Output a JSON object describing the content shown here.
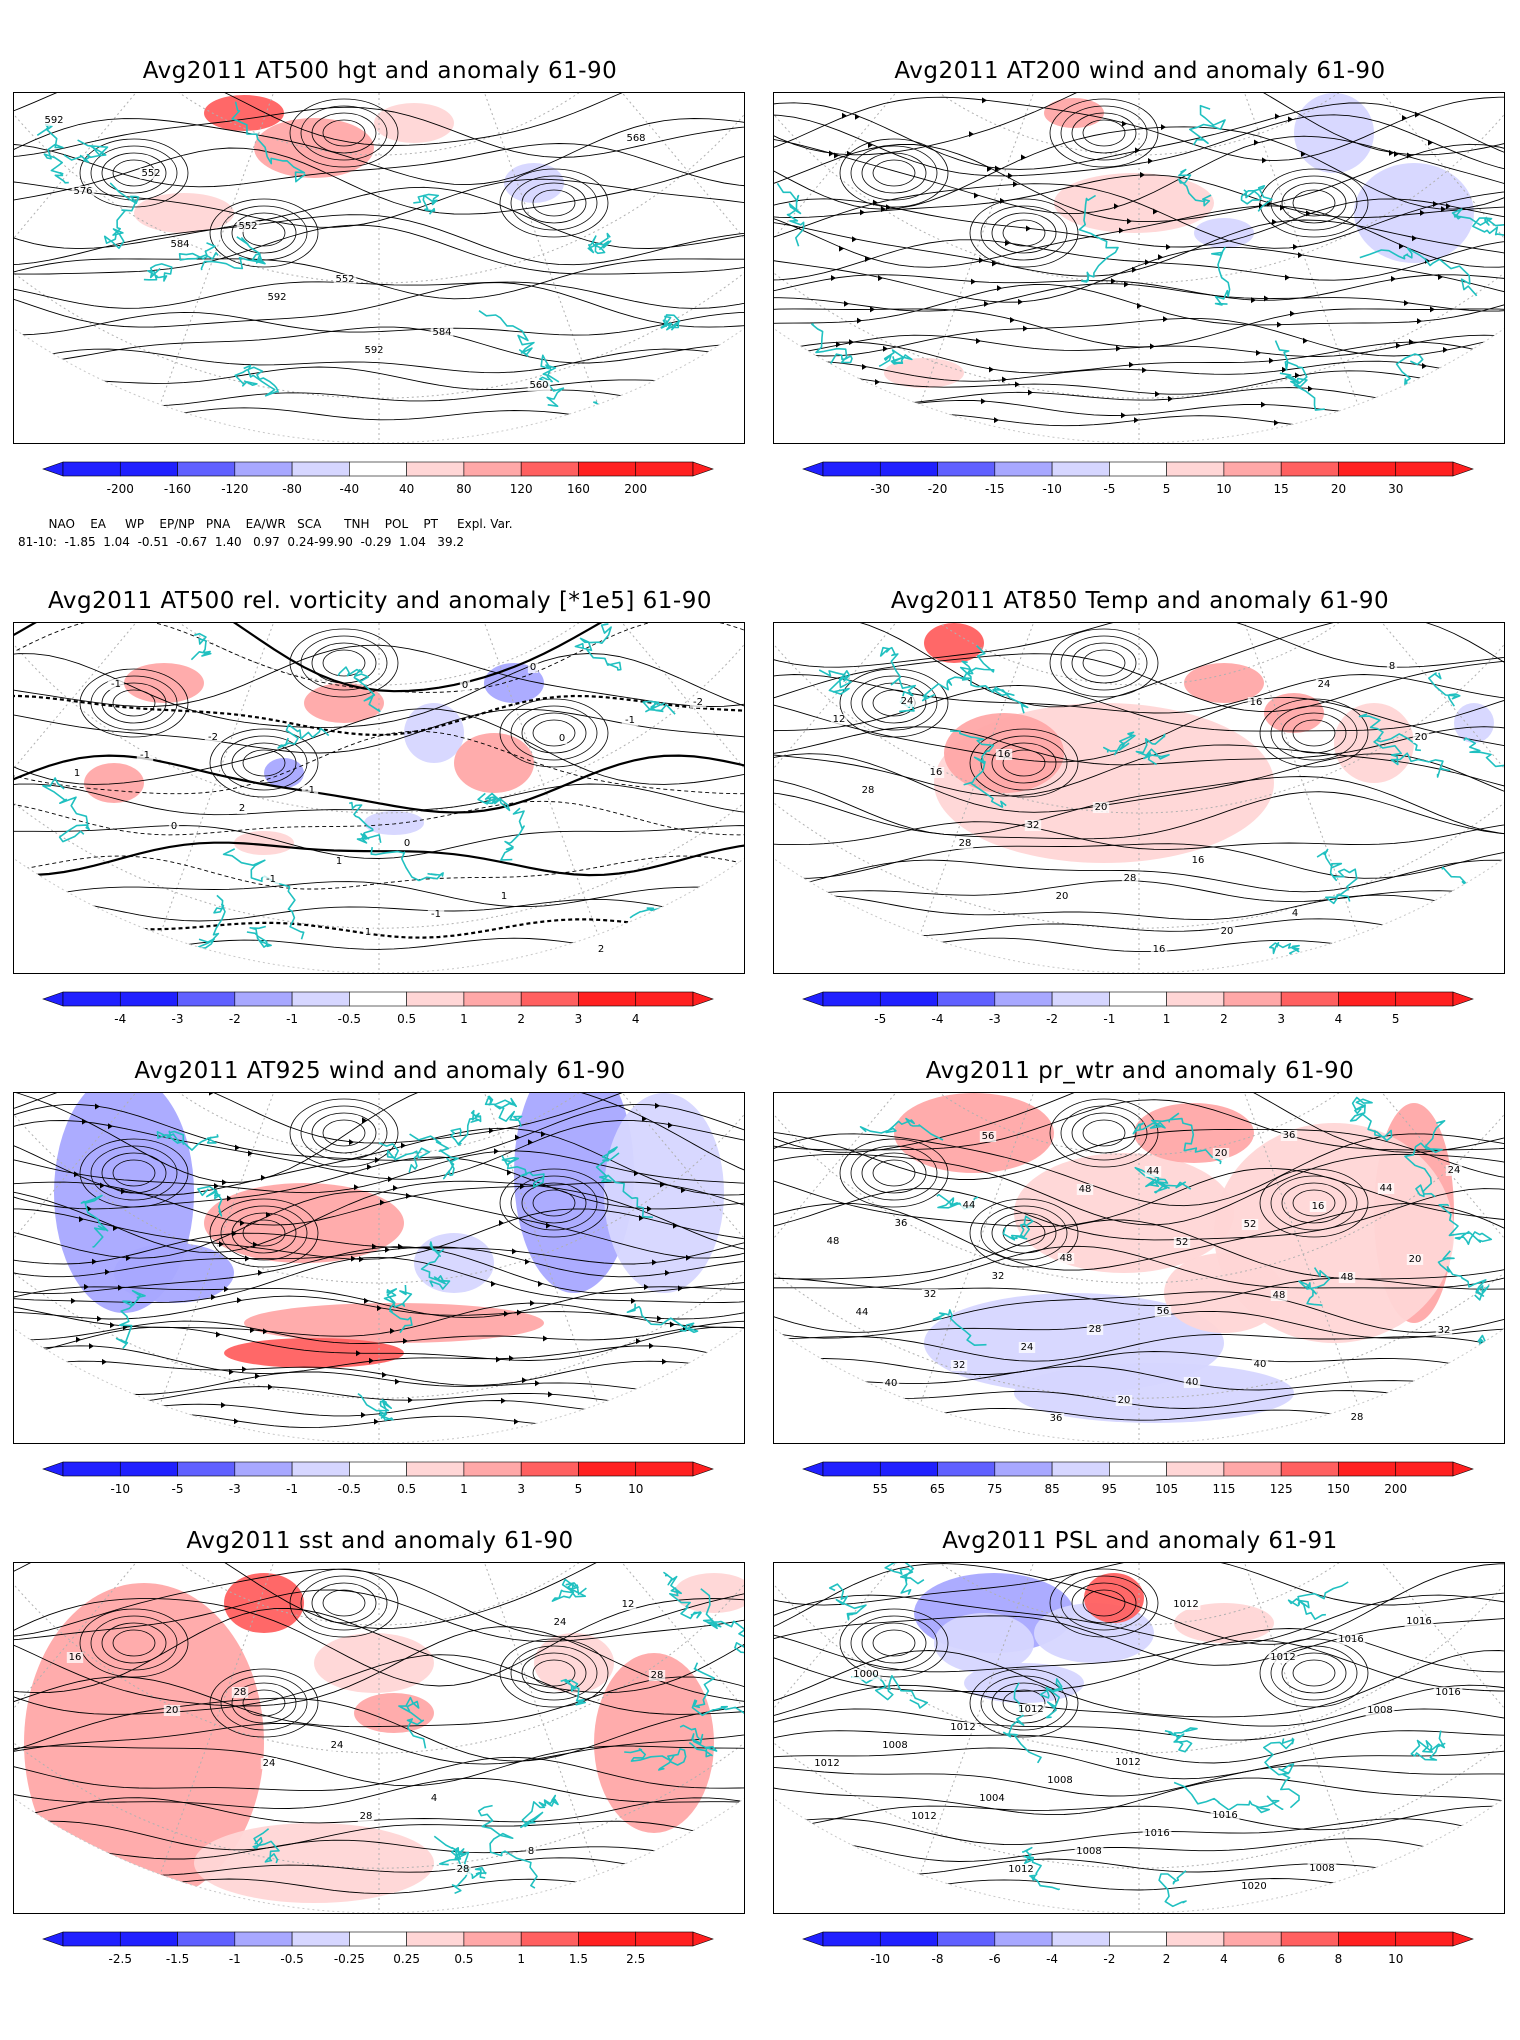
{
  "colors": {
    "cyan_coast": "#20c0c0",
    "blue_strong": "#2020ff",
    "blue_mid": "#6060ff",
    "blue_light": "#a8a8ff",
    "blue_pale": "#d6d6ff",
    "red_pale": "#ffd6d6",
    "red_light": "#ffa8a8",
    "red_mid": "#ff6060",
    "red_strong": "#ff2020"
  },
  "panels": [
    {
      "title": "Avg2011 AT500 hgt and anomaly 61-90",
      "colorbar": [
        "-200",
        "-160",
        "-120",
        "-80",
        "-40",
        "40",
        "80",
        "120",
        "160",
        "200"
      ],
      "contour_labels": [
        "592",
        "552",
        "552",
        "552",
        "584",
        "560",
        "568",
        "576",
        "584",
        "592",
        "592"
      ]
    },
    {
      "title": "Avg2011 AT200 wind and anomaly 61-90",
      "colorbar": [
        "-30",
        "-20",
        "-15",
        "-10",
        "-5",
        "5",
        "10",
        "15",
        "20",
        "30"
      ],
      "contour_labels": []
    },
    {
      "title": "Avg2011 AT500 rel. vorticity and anomaly [*1e5] 61-90",
      "colorbar": [
        "-4",
        "-3",
        "-2",
        "-1",
        "-0.5",
        "0.5",
        "1",
        "2",
        "3",
        "4"
      ],
      "contour_labels": [
        "-1",
        "-2",
        "-1",
        "0",
        "1",
        "2",
        "-2",
        "-1",
        "2",
        "1",
        "-1",
        "0",
        "-1",
        "1",
        "0",
        "-1",
        "1",
        "0",
        "0"
      ]
    },
    {
      "title": "Avg2011 AT850 Temp and anomaly 61-90",
      "colorbar": [
        "-5",
        "-4",
        "-3",
        "-2",
        "-1",
        "1",
        "2",
        "3",
        "4",
        "5"
      ],
      "contour_labels": [
        "24",
        "16",
        "20",
        "16",
        "4",
        "8",
        "12",
        "16",
        "32",
        "28",
        "20",
        "24",
        "20",
        "28",
        "28",
        "20",
        "16",
        "16"
      ]
    },
    {
      "title": "Avg2011 AT925 wind and anomaly 61-90",
      "colorbar": [
        "-10",
        "-5",
        "-3",
        "-1",
        "-0.5",
        "0.5",
        "1",
        "3",
        "5",
        "10"
      ],
      "contour_labels": []
    },
    {
      "title": "Avg2011 pr_wtr and anomaly 61-90",
      "colorbar": [
        "55",
        "65",
        "75",
        "85",
        "95",
        "105",
        "115",
        "125",
        "150",
        "200"
      ],
      "contour_labels": [
        "44",
        "48",
        "56",
        "40",
        "28",
        "24",
        "36",
        "32",
        "28",
        "40",
        "36",
        "44",
        "48",
        "32",
        "24",
        "20",
        "20",
        "16",
        "20",
        "44",
        "32",
        "36",
        "44",
        "52",
        "48",
        "32",
        "40",
        "56",
        "48",
        "52",
        "48"
      ]
    },
    {
      "title": "Avg2011 sst and anomaly 61-90",
      "colorbar": [
        "-2.5",
        "-1.5",
        "-1",
        "-0.5",
        "-0.25",
        "0.25",
        "0.5",
        "1",
        "1.5",
        "2.5"
      ],
      "contour_labels": [
        "28",
        "24",
        "4",
        "8",
        "12",
        "16",
        "20",
        "24",
        "28",
        "28",
        "24",
        "28"
      ]
    },
    {
      "title": "Avg2011 PSL and anomaly 61-91",
      "colorbar": [
        "-10",
        "-8",
        "-6",
        "-4",
        "-2",
        "2",
        "4",
        "6",
        "8",
        "10"
      ],
      "contour_labels": [
        "1012",
        "1012",
        "1016",
        "1008",
        "1016",
        "1000",
        "1012",
        "1008",
        "1016",
        "1020",
        "1016",
        "1016",
        "1008",
        "1004",
        "1008",
        "1012",
        "1012",
        "1008",
        "1012",
        "1012",
        "1012"
      ]
    }
  ],
  "teleconnection": {
    "header": "NAO    EA     WP    EP/NP   PNA    EA/WR   SCA      TNH    POL    PT     Expl. Var.",
    "row": "81-10:  -1.85  1.04  -0.51  -0.67  1.40   0.97  0.24-99.90  -0.29  1.04   39.2"
  }
}
